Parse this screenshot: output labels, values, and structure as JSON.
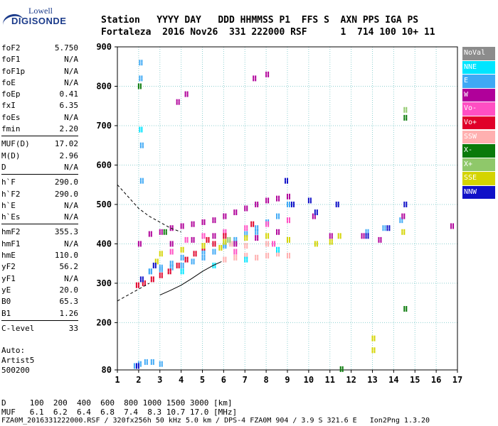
{
  "logo": {
    "line1": "Lowell",
    "line2": "DIGISONDE"
  },
  "header": {
    "labels": "Station   YYYY DAY   DDD HHMMSS P1  FFS S  AXN PPS IGA PS",
    "values": "Fortaleza  2016 Nov26  331 222000 RSF      1  714 100 10+ 11"
  },
  "params": {
    "group1": [
      {
        "name": "foF2",
        "value": "5.750"
      },
      {
        "name": "foF1",
        "value": "N/A"
      },
      {
        "name": "foF1p",
        "value": "N/A"
      },
      {
        "name": "foE",
        "value": "N/A"
      },
      {
        "name": "foEp",
        "value": "0.41"
      },
      {
        "name": "fxI",
        "value": "6.35"
      },
      {
        "name": "foEs",
        "value": "N/A"
      },
      {
        "name": "fmin",
        "value": "2.20"
      }
    ],
    "group2": [
      {
        "name": "MUF(D)",
        "value": "17.02"
      },
      {
        "name": "M(D)",
        "value": "2.96"
      },
      {
        "name": "D",
        "value": "N/A"
      }
    ],
    "group3": [
      {
        "name": "h`F",
        "value": "290.0"
      },
      {
        "name": "h`F2",
        "value": "290.0"
      },
      {
        "name": "h`E",
        "value": "N/A"
      },
      {
        "name": "h`Es",
        "value": "N/A"
      }
    ],
    "group4": [
      {
        "name": "hmF2",
        "value": "355.3"
      },
      {
        "name": "hmF1",
        "value": "N/A"
      },
      {
        "name": "hmE",
        "value": "110.0"
      },
      {
        "name": "yF2",
        "value": "56.2"
      },
      {
        "name": "yF1",
        "value": "N/A"
      },
      {
        "name": "yE",
        "value": "20.0"
      },
      {
        "name": "B0",
        "value": "65.3"
      },
      {
        "name": "B1",
        "value": "1.26"
      }
    ],
    "group5": [
      {
        "name": "C-level",
        "value": "33"
      }
    ]
  },
  "auto": {
    "line1": "Auto:",
    "line2": "Artist5",
    "line3": "500200"
  },
  "legend": [
    {
      "label": "NoVal",
      "color": "#8c8c8c"
    },
    {
      "label": "NNE",
      "color": "#00e5ff"
    },
    {
      "label": "E",
      "color": "#3fa9f5"
    },
    {
      "label": "W",
      "color": "#b0009a"
    },
    {
      "label": "Vo-",
      "color": "#ff4fc3"
    },
    {
      "label": "Vo+",
      "color": "#e0002a"
    },
    {
      "label": "SSW",
      "color": "#ffb0b0"
    },
    {
      "label": "X-",
      "color": "#0a7a0a"
    },
    {
      "label": "X+",
      "color": "#8fc86a"
    },
    {
      "label": "SSE",
      "color": "#d4d400"
    },
    {
      "label": "NNW",
      "color": "#1010c8"
    }
  ],
  "footer": {
    "d_row": "D     100  200  400  600  800 1000 1500 3000 [km]",
    "muf_row": "MUF   6.1  6.2  6.4  6.8  7.4  8.3 10.7 17.0 [MHz]",
    "file_line": "FZA0M_2016331222000.RSF / 320fx256h 50 kHz 5.0 km / DPS-4 FZA0M 904 / 3.9 S 321.6 E   Ion2Png 1.3.20"
  },
  "chart_data": {
    "type": "scatter",
    "xlim": [
      1,
      17
    ],
    "ylim": [
      80,
      900
    ],
    "x_ticks": [
      1,
      2,
      3,
      4,
      5,
      6,
      7,
      8,
      9,
      10,
      11,
      12,
      13,
      14,
      15,
      16,
      17
    ],
    "y_ticks": [
      80,
      200,
      300,
      400,
      500,
      600,
      700,
      800,
      900
    ],
    "grid": true,
    "legend_position": "right",
    "series": [
      {
        "name": "E",
        "color": "#3fa9f5",
        "points": [
          [
            1.8,
            90
          ],
          [
            2.0,
            95
          ],
          [
            2.3,
            100
          ],
          [
            2.6,
            100
          ],
          [
            3.0,
            95
          ],
          [
            2.05,
            860
          ],
          [
            2.05,
            820
          ],
          [
            2.1,
            650
          ],
          [
            2.1,
            560
          ],
          [
            2.5,
            330
          ],
          [
            3.0,
            335
          ],
          [
            3.5,
            340
          ],
          [
            4.0,
            345
          ],
          [
            4.5,
            355
          ],
          [
            5.0,
            365
          ],
          [
            5.5,
            380
          ],
          [
            6.0,
            395
          ],
          [
            6.5,
            410
          ],
          [
            7.0,
            425
          ],
          [
            7.5,
            440
          ],
          [
            8.0,
            455
          ],
          [
            8.5,
            470
          ],
          [
            9.0,
            500
          ],
          [
            2.5,
            330
          ],
          [
            3.0,
            340
          ],
          [
            3.5,
            350
          ],
          [
            4.0,
            365
          ],
          [
            5.0,
            380
          ],
          [
            6.0,
            400
          ],
          [
            7.5,
            430
          ],
          [
            12.7,
            430
          ],
          [
            13.5,
            440
          ],
          [
            14.3,
            460
          ]
        ]
      },
      {
        "name": "W",
        "color": "#b0009a",
        "points": [
          [
            2.0,
            400
          ],
          [
            2.5,
            425
          ],
          [
            3.0,
            430
          ],
          [
            3.5,
            440
          ],
          [
            4.0,
            445
          ],
          [
            4.5,
            450
          ],
          [
            5.0,
            455
          ],
          [
            5.5,
            460
          ],
          [
            6.0,
            470
          ],
          [
            6.5,
            480
          ],
          [
            7.0,
            490
          ],
          [
            7.5,
            500
          ],
          [
            8.0,
            510
          ],
          [
            8.5,
            515
          ],
          [
            9.0,
            520
          ],
          [
            3.5,
            400
          ],
          [
            4.5,
            410
          ],
          [
            5.5,
            420
          ],
          [
            6.5,
            400
          ],
          [
            7.5,
            415
          ],
          [
            8.5,
            430
          ],
          [
            10.2,
            470
          ],
          [
            11.0,
            420
          ],
          [
            12.5,
            420
          ],
          [
            13.3,
            410
          ],
          [
            14.4,
            470
          ],
          [
            16.7,
            445
          ],
          [
            3.8,
            760
          ],
          [
            4.2,
            780
          ],
          [
            7.4,
            820
          ],
          [
            8.0,
            830
          ]
        ]
      },
      {
        "name": "Vo-",
        "color": "#ff4fc3",
        "points": [
          [
            4.2,
            410
          ],
          [
            5.0,
            420
          ],
          [
            6.0,
            430
          ],
          [
            7.0,
            440
          ],
          [
            8.0,
            450
          ],
          [
            9.0,
            460
          ],
          [
            3.5,
            380
          ],
          [
            6.5,
            380
          ],
          [
            8.3,
            400
          ]
        ]
      },
      {
        "name": "Vo+",
        "color": "#e0002a",
        "points": [
          [
            1.9,
            295
          ],
          [
            2.2,
            300
          ],
          [
            2.6,
            310
          ],
          [
            3.0,
            320
          ],
          [
            3.4,
            330
          ],
          [
            3.8,
            345
          ],
          [
            4.2,
            360
          ],
          [
            4.6,
            375
          ],
          [
            5.0,
            390
          ],
          [
            5.5,
            400
          ],
          [
            6.0,
            420
          ],
          [
            5.2,
            410
          ],
          [
            7.3,
            450
          ]
        ]
      },
      {
        "name": "SSW",
        "color": "#ffb0b0",
        "points": [
          [
            6.0,
            360
          ],
          [
            6.5,
            365
          ],
          [
            7.0,
            370
          ],
          [
            7.5,
            365
          ],
          [
            8.0,
            370
          ],
          [
            8.5,
            375
          ],
          [
            9.0,
            370
          ],
          [
            6.3,
            400
          ],
          [
            7.0,
            395
          ],
          [
            8.0,
            400
          ]
        ]
      },
      {
        "name": "X-",
        "color": "#0a7a0a",
        "points": [
          [
            2.0,
            800
          ],
          [
            3.2,
            430
          ],
          [
            14.5,
            235
          ],
          [
            11.5,
            82
          ],
          [
            14.5,
            720
          ]
        ]
      },
      {
        "name": "X+",
        "color": "#8fc86a",
        "points": [
          [
            14.5,
            740
          ],
          [
            5.0,
            395
          ],
          [
            6.2,
            410
          ]
        ]
      },
      {
        "name": "SSE",
        "color": "#d4d400",
        "points": [
          [
            3.0,
            375
          ],
          [
            4.0,
            385
          ],
          [
            5.0,
            395
          ],
          [
            6.0,
            405
          ],
          [
            7.0,
            415
          ],
          [
            8.0,
            420
          ],
          [
            9.0,
            410
          ],
          [
            10.3,
            400
          ],
          [
            11.0,
            405
          ],
          [
            11.4,
            420
          ],
          [
            13.0,
            160
          ],
          [
            13.0,
            130
          ],
          [
            14.4,
            430
          ],
          [
            2.8,
            355
          ],
          [
            5.8,
            390
          ]
        ]
      },
      {
        "name": "NNW",
        "color": "#1010c8",
        "points": [
          [
            2.1,
            310
          ],
          [
            2.7,
            345
          ],
          [
            10.0,
            510
          ],
          [
            10.3,
            480
          ],
          [
            11.3,
            500
          ],
          [
            12.7,
            420
          ],
          [
            13.7,
            440
          ],
          [
            14.5,
            500
          ],
          [
            1.9,
            90
          ],
          [
            9.2,
            500
          ],
          [
            8.9,
            560
          ]
        ]
      },
      {
        "name": "NNE",
        "color": "#00e5ff",
        "points": [
          [
            2.05,
            690
          ],
          [
            4.0,
            330
          ],
          [
            5.5,
            345
          ],
          [
            7.0,
            360
          ],
          [
            8.5,
            385
          ]
        ]
      }
    ]
  }
}
